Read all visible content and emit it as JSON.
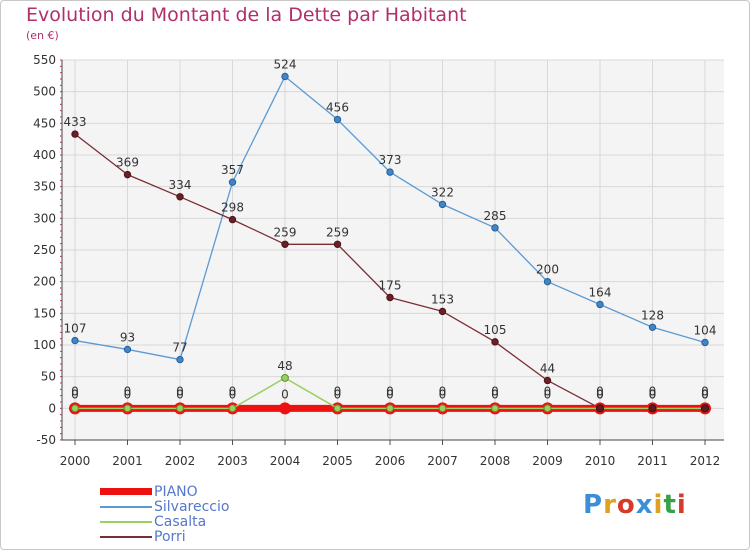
{
  "title": "Evolution du Montant de la Dette par Habitant",
  "subtitle": "(en €)",
  "logo": {
    "letters": [
      {
        "ch": "P",
        "color": "#3b8fd8"
      },
      {
        "ch": "r",
        "color": "#e0a020"
      },
      {
        "ch": "o",
        "color": "#d83a2a"
      },
      {
        "ch": "x",
        "color": "#3b8fd8"
      },
      {
        "ch": "i",
        "color": "#e0a020"
      },
      {
        "ch": "t",
        "color": "#38a048"
      },
      {
        "ch": "i",
        "color": "#d83a2a"
      }
    ]
  },
  "chart_data": {
    "type": "line",
    "x": [
      "2000",
      "2001",
      "2002",
      "2003",
      "2004",
      "2005",
      "2006",
      "2007",
      "2008",
      "2009",
      "2010",
      "2011",
      "2012"
    ],
    "ylim": [
      -50,
      550
    ],
    "yticks": [
      -50,
      0,
      50,
      100,
      150,
      200,
      250,
      300,
      350,
      400,
      450,
      500,
      550
    ],
    "grid": true,
    "legend_position": "bottom-left",
    "series": [
      {
        "name": "Silvareccio",
        "color": "#5b9ad2",
        "values": [
          107,
          93,
          77,
          357,
          524,
          456,
          373,
          322,
          285,
          200,
          164,
          128,
          104
        ]
      },
      {
        "name": "Porri",
        "color": "#7a2e34",
        "values": [
          433,
          369,
          334,
          298,
          259,
          259,
          175,
          153,
          105,
          44,
          0,
          0,
          0
        ]
      },
      {
        "name": "Casalta",
        "color": "#99d060",
        "values": [
          0,
          0,
          0,
          0,
          48,
          0,
          0,
          0,
          0,
          0,
          0,
          0,
          0
        ]
      },
      {
        "name": "PIANO",
        "color": "#ee1111",
        "values": [
          0,
          0,
          0,
          0,
          0,
          0,
          0,
          0,
          0,
          0,
          0,
          0,
          0
        ]
      }
    ],
    "data_labels": {
      "Silvareccio": [
        "107",
        "93",
        "77",
        "357",
        "524",
        "456",
        "373",
        "322",
        "285",
        "200",
        "164",
        "128",
        "104"
      ],
      "Porri": [
        "433",
        "369",
        "334",
        "298",
        "259",
        "259",
        "175",
        "153",
        "105",
        "44",
        "0",
        "0",
        "0"
      ],
      "Casalta": [
        "0",
        "0",
        "0",
        "0",
        "48",
        "0",
        "0",
        "0",
        "0",
        "0",
        "0",
        "0",
        "0"
      ],
      "PIANO": [
        "0",
        "0",
        "0",
        "0",
        "0",
        "0",
        "0",
        "0",
        "0",
        "0",
        "0",
        "0",
        "0"
      ]
    }
  }
}
